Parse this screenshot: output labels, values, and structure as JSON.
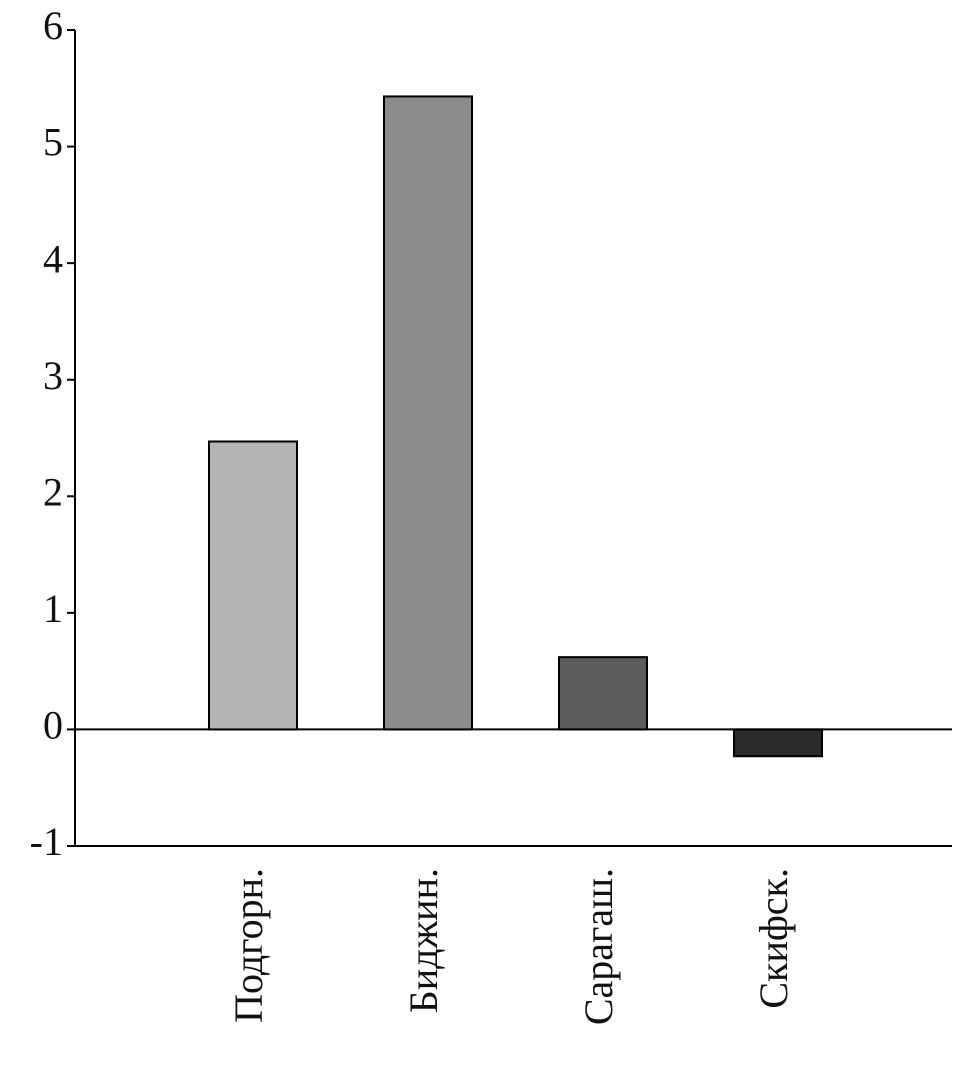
{
  "chart_data": {
    "type": "bar",
    "categories": [
      "Подгорн.",
      "Биджин.",
      "Сарагаш.",
      "Скифск."
    ],
    "values": [
      2.47,
      5.43,
      0.62,
      -0.23
    ],
    "colors": [
      "#b5b5b5",
      "#8c8c8c",
      "#5c5c5c",
      "#2b2b2b"
    ],
    "ylim": [
      -1,
      6
    ],
    "yticks": [
      -1,
      0,
      1,
      2,
      3,
      4,
      5,
      6
    ],
    "grid": false
  }
}
